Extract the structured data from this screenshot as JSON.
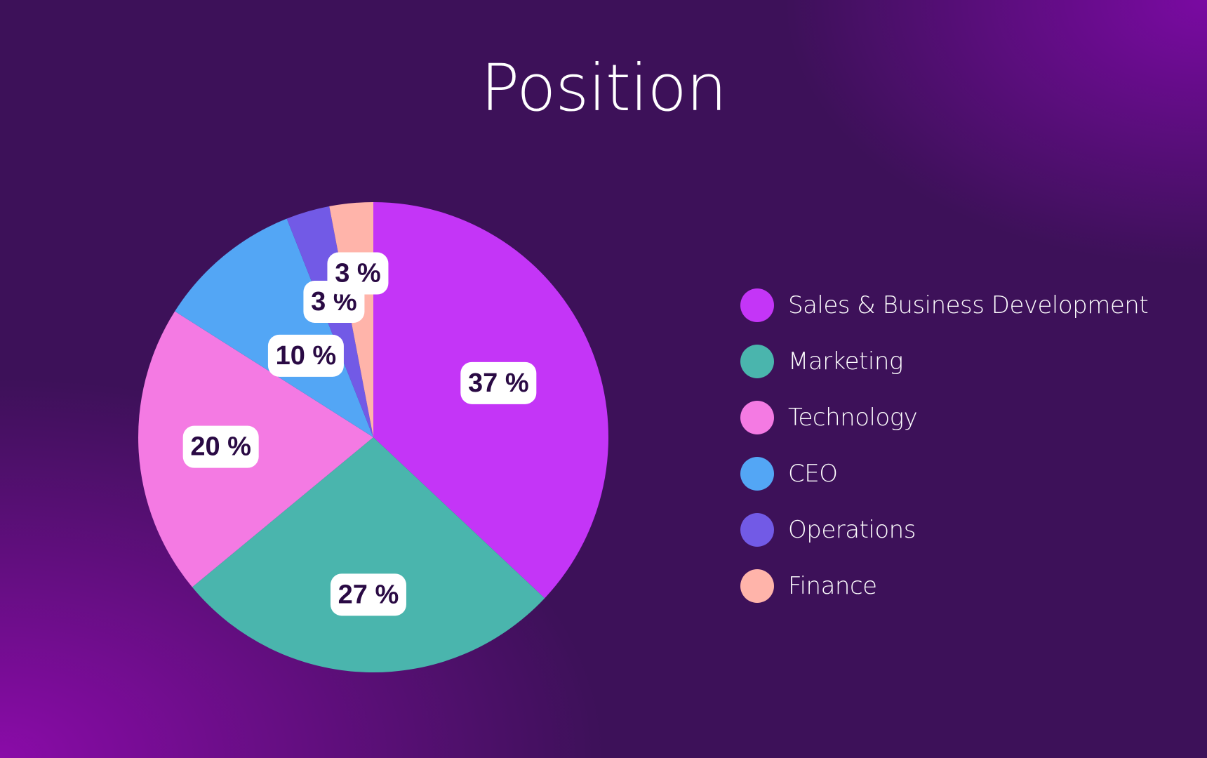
{
  "chart_data": {
    "type": "pie",
    "title": "Position",
    "categories": [
      "Sales & Business Development",
      "Marketing",
      "Technology",
      "CEO",
      "Operations",
      "Finance"
    ],
    "values": [
      37,
      27,
      20,
      10,
      3,
      3
    ],
    "data_labels": [
      "37 %",
      "27 %",
      "20 %",
      "10 %",
      "3 %",
      "3 %"
    ],
    "colors": [
      "#c435f7",
      "#4ab5ad",
      "#f47ae3",
      "#53a6f5",
      "#725ae6",
      "#ffb4aa"
    ],
    "legend_position": "right",
    "start_angle": "12 o'clock",
    "direction": "clockwise"
  },
  "theme": {
    "background": "#3d1159",
    "background_corner": "#8a0ba8",
    "label_bg": "#ffffff",
    "label_text": "#2a0a44",
    "title_color": "#ffffff"
  }
}
